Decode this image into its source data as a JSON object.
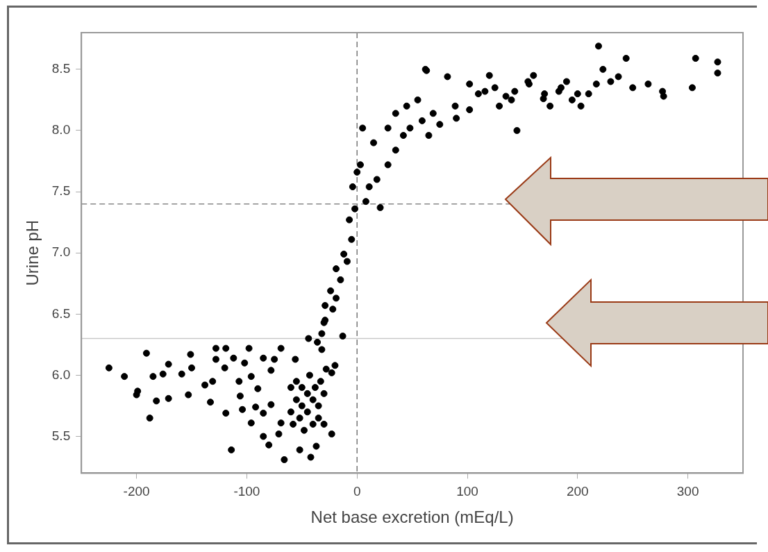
{
  "chart_data": {
    "type": "scatter",
    "xlabel": "Net base excretion (mEq/L)",
    "ylabel": "Urine pH",
    "xlim": [
      -250,
      350
    ],
    "ylim": [
      5.2,
      8.8
    ],
    "xticks": [
      -200,
      -100,
      0,
      100,
      200,
      300
    ],
    "yticks": [
      5.5,
      {
        "value": 6,
        "label": "6.0"
      },
      6.5,
      {
        "value": 7,
        "label": "7.0"
      },
      7.5,
      {
        "value": 8,
        "label": "8.0"
      },
      8.5
    ],
    "grid": false,
    "legend": false,
    "marker": "circle",
    "ref_lines": [
      {
        "axis": "x",
        "value": 0,
        "line_style": "dashed",
        "color": "#777777"
      },
      {
        "axis": "y",
        "value": 7.4,
        "line_style": "dashed",
        "color": "#888888"
      },
      {
        "axis": "y",
        "value": 6.3,
        "line_style": "solid",
        "color": "#c8c8c8"
      }
    ],
    "series": [
      {
        "color": "#000000",
        "x": [
          -225,
          -211,
          -191,
          -199,
          -200,
          -185,
          -176,
          -171,
          -182,
          -171,
          -188,
          -159,
          -151,
          -150,
          -153,
          -138,
          -131,
          -133,
          -128,
          -119,
          -128,
          -120,
          -119,
          -114,
          -112,
          -107,
          -106,
          -104,
          -98,
          -102,
          -96,
          -92,
          -96,
          -85,
          -85,
          -90,
          -85,
          -80,
          -78,
          -75,
          -69,
          -78,
          -71,
          -66,
          -69,
          -56,
          -60,
          -60,
          -58,
          -55,
          -55,
          -52,
          -50,
          -50,
          -48,
          -45,
          -45,
          -43,
          -40,
          -40,
          -38,
          -35,
          -35,
          -33,
          -30,
          -30,
          -28,
          -52,
          -42,
          -37,
          -23,
          -32,
          -30,
          -13,
          -20,
          -23,
          -32,
          -44,
          -29,
          -24,
          -19,
          -15,
          -12,
          -9,
          -5,
          -7,
          -2,
          -4,
          0,
          3,
          5,
          -29,
          -22,
          -36,
          -19,
          8,
          11,
          18,
          21,
          28,
          35,
          42,
          48,
          59,
          69,
          15,
          28,
          35,
          45,
          62,
          82,
          102,
          116,
          89,
          102,
          129,
          143,
          156,
          169,
          183,
          203,
          217,
          223,
          219,
          237,
          244,
          264,
          277,
          278,
          307,
          304,
          327,
          327,
          145,
          65,
          75,
          63,
          110,
          125,
          140,
          155,
          170,
          185,
          195,
          210,
          230,
          250,
          120,
          135,
          160,
          175,
          190,
          200,
          90,
          55
        ],
        "values": [
          6.06,
          5.99,
          6.18,
          5.87,
          5.84,
          5.99,
          6.01,
          6.09,
          5.79,
          5.81,
          5.65,
          6.01,
          6.17,
          6.06,
          5.84,
          5.92,
          5.95,
          5.78,
          6.22,
          6.22,
          6.13,
          6.06,
          5.69,
          5.39,
          6.14,
          5.95,
          5.83,
          5.72,
          6.22,
          6.1,
          5.99,
          5.74,
          5.61,
          6.14,
          5.69,
          5.89,
          5.5,
          5.43,
          6.04,
          6.13,
          6.22,
          5.76,
          5.52,
          5.31,
          5.61,
          6.13,
          5.9,
          5.7,
          5.6,
          5.8,
          5.95,
          5.65,
          5.75,
          5.9,
          5.55,
          5.7,
          5.85,
          6.0,
          5.6,
          5.8,
          5.9,
          5.65,
          5.75,
          5.95,
          5.6,
          5.85,
          6.05,
          5.39,
          5.33,
          5.42,
          5.52,
          6.34,
          6.43,
          6.32,
          6.08,
          6.02,
          6.21,
          6.3,
          6.57,
          6.69,
          6.87,
          6.78,
          6.99,
          6.93,
          7.11,
          7.27,
          7.36,
          7.54,
          7.66,
          7.72,
          8.02,
          6.45,
          6.54,
          6.27,
          6.63,
          7.42,
          7.54,
          7.6,
          7.37,
          7.72,
          7.84,
          7.96,
          8.02,
          8.08,
          8.14,
          7.9,
          8.02,
          8.14,
          8.2,
          8.5,
          8.44,
          8.38,
          8.32,
          8.2,
          8.17,
          8.2,
          8.32,
          8.38,
          8.26,
          8.32,
          8.2,
          8.38,
          8.5,
          8.69,
          8.44,
          8.59,
          8.38,
          8.32,
          8.28,
          8.59,
          8.35,
          8.56,
          8.47,
          8.0,
          7.96,
          8.05,
          8.49,
          8.3,
          8.35,
          8.25,
          8.4,
          8.3,
          8.35,
          8.25,
          8.3,
          8.4,
          8.35,
          8.45,
          8.28,
          8.45,
          8.2,
          8.4,
          8.3,
          8.1,
          8.25
        ]
      }
    ]
  }
}
